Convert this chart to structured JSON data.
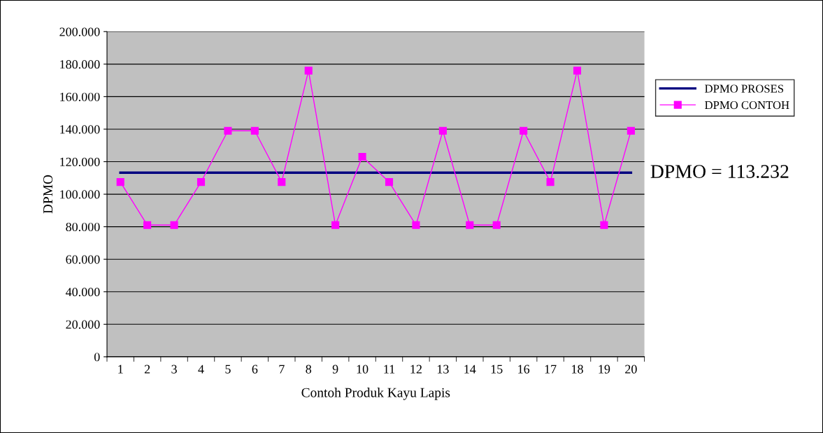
{
  "chart_data": {
    "type": "line",
    "xlabel": "Contoh Produk Kayu Lapis",
    "ylabel": "DPMO",
    "categories": [
      "1",
      "2",
      "3",
      "4",
      "5",
      "6",
      "7",
      "8",
      "9",
      "10",
      "11",
      "12",
      "13",
      "14",
      "15",
      "16",
      "17",
      "18",
      "19",
      "20"
    ],
    "series": [
      {
        "name": "DPMO PROSES",
        "color": "#000080",
        "marker": "none",
        "values": [
          113232,
          113232,
          113232,
          113232,
          113232,
          113232,
          113232,
          113232,
          113232,
          113232,
          113232,
          113232,
          113232,
          113232,
          113232,
          113232,
          113232,
          113232,
          113232,
          113232
        ]
      },
      {
        "name": "DPMO CONTOH",
        "color": "#ff00ff",
        "marker": "square",
        "values": [
          107500,
          81000,
          81000,
          107500,
          139000,
          139000,
          107500,
          176000,
          81000,
          123000,
          107500,
          81000,
          139000,
          81000,
          81000,
          139000,
          107500,
          176000,
          81000,
          139000
        ]
      }
    ],
    "ylim": [
      0,
      200000
    ],
    "yticks": [
      {
        "value": 0,
        "label": "0"
      },
      {
        "value": 20000,
        "label": "20.000"
      },
      {
        "value": 40000,
        "label": "40.000"
      },
      {
        "value": 60000,
        "label": "60.000"
      },
      {
        "value": 80000,
        "label": "80.000"
      },
      {
        "value": 100000,
        "label": "100.000"
      },
      {
        "value": 120000,
        "label": "120.000"
      },
      {
        "value": 140000,
        "label": "140.000"
      },
      {
        "value": 160000,
        "label": "160.000"
      },
      {
        "value": 180000,
        "label": "180.000"
      },
      {
        "value": 200000,
        "label": "200.000"
      }
    ],
    "grid": "y",
    "legend": "right",
    "annotations": [
      "DPMO = 113.232"
    ]
  }
}
